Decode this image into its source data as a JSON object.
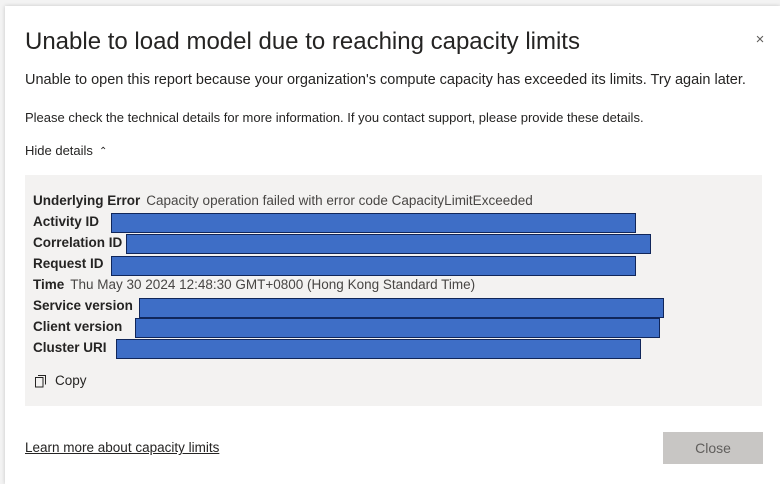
{
  "dialog": {
    "title": "Unable to load model due to reaching capacity limits",
    "close_glyph": "×",
    "message": "Unable to open this report because your organization's compute capacity has exceeded its limits. Try again later.",
    "support_text": "Please check the technical details for more information. If you contact support, please provide these details.",
    "toggle_label": "Hide details",
    "toggle_icon": "chevron-up-icon",
    "details": {
      "underlying_error_label": "Underlying Error",
      "underlying_error_value": "Capacity operation failed with error code CapacityLimitExceeded",
      "activity_id_label": "Activity ID",
      "correlation_id_label": "Correlation ID",
      "request_id_label": "Request ID",
      "time_label": "Time",
      "time_value": "Thu May 30 2024 12:48:30 GMT+0800 (Hong Kong Standard Time)",
      "service_version_label": "Service version",
      "client_version_label": "Client version",
      "cluster_uri_label": "Cluster URI",
      "redaction_color": "#3e6ec6"
    },
    "copy_label": "Copy",
    "copy_icon": "copy-icon",
    "learn_more_link": "Learn more about capacity limits",
    "close_button_label": "Close"
  }
}
